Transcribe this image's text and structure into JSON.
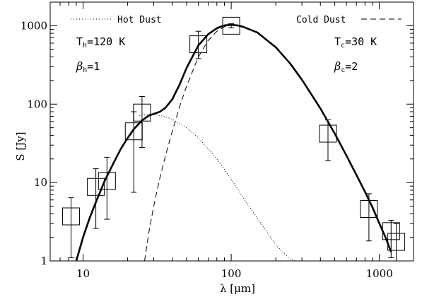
{
  "chart_data": {
    "type": "scatter",
    "title": "",
    "xlabel": "λ [μm]",
    "ylabel": "S [Jy]",
    "xscale": "log",
    "yscale": "log",
    "xlim": [
      6,
      1700
    ],
    "ylim": [
      1,
      2000
    ],
    "x_ticks": [
      {
        "value": 10,
        "label": "10"
      },
      {
        "value": 100,
        "label": "100"
      },
      {
        "value": 1000,
        "label": "1000"
      }
    ],
    "y_ticks": [
      {
        "value": 1,
        "label": "1"
      },
      {
        "value": 10,
        "label": "10"
      },
      {
        "value": 100,
        "label": "100"
      },
      {
        "value": 1000,
        "label": "1000"
      }
    ],
    "legend": {
      "hot": {
        "label": "Hot Dust",
        "style": "dotted",
        "placement": "top-left"
      },
      "cold": {
        "label": "Cold Dust",
        "style": "dashed",
        "placement": "top-right"
      }
    },
    "annotations": {
      "hot": {
        "T_main": "T",
        "T_sub": "h",
        "T_value": "=120 K",
        "beta_main": "β",
        "beta_sub": "h",
        "beta_value": "=1"
      },
      "cold": {
        "T_main": "T",
        "T_sub": "c",
        "T_value": "=30 K",
        "beta_main": "β",
        "beta_sub": "c",
        "beta_value": "=2"
      }
    },
    "observations": [
      {
        "x": 8.3,
        "y": 3.7,
        "y_low": 1.1,
        "y_high": 6.4
      },
      {
        "x": 12.2,
        "y": 8.8,
        "y_low": 2.6,
        "y_high": 15
      },
      {
        "x": 14.5,
        "y": 10.5,
        "y_low": 3.4,
        "y_high": 21
      },
      {
        "x": 22,
        "y": 45,
        "y_low": 7.5,
        "y_high": 80
      },
      {
        "x": 25,
        "y": 78,
        "y_low": 28,
        "y_high": 125
      },
      {
        "x": 60,
        "y": 580,
        "y_low": 380,
        "y_high": 850
      },
      {
        "x": 100,
        "y": 1000,
        "y_low": 940,
        "y_high": 1060
      },
      {
        "x": 450,
        "y": 42,
        "y_low": 19,
        "y_high": 63
      },
      {
        "x": 850,
        "y": 4.6,
        "y_low": 1.8,
        "y_high": 7.2
      },
      {
        "x": 1200,
        "y": 2.4,
        "y_low": 1.1,
        "y_high": 3.3
      },
      {
        "x": 1300,
        "y": 1.75,
        "y_low": 1.0,
        "y_high": 3.0
      }
    ],
    "series": [
      {
        "style": "solid",
        "x": [
          9,
          10,
          11,
          12,
          14,
          16,
          18,
          20,
          22,
          25,
          28,
          30,
          33,
          36,
          40,
          45,
          50,
          60,
          70,
          80,
          90,
          100,
          110,
          120,
          150,
          200,
          250,
          300,
          400,
          500,
          600,
          700,
          800,
          900,
          1000,
          1100,
          1200
        ],
        "y": [
          1,
          2.0,
          3.4,
          5.2,
          10.5,
          17.5,
          27,
          37,
          48,
          62,
          72,
          75,
          80,
          90,
          115,
          180,
          290,
          560,
          780,
          930,
          1010,
          1030,
          1010,
          970,
          820,
          530,
          330,
          205,
          88,
          42,
          22,
          12.5,
          7.6,
          4.8,
          3.0,
          2.0,
          1.3
        ]
      },
      {
        "style": "dotted",
        "x": [
          24,
          26,
          28,
          30,
          35,
          40,
          50,
          60,
          70,
          80,
          100,
          120,
          150,
          200,
          250,
          280
        ],
        "y": [
          71,
          73,
          74,
          74,
          70,
          64,
          50,
          37,
          27,
          20,
          11,
          6.5,
          3.5,
          1.6,
          1.05,
          0.98
        ]
      },
      {
        "style": "dashed",
        "x": [
          26,
          28,
          30,
          33,
          36,
          40,
          45,
          50,
          60,
          70,
          80,
          90,
          100
        ],
        "y": [
          1,
          2.5,
          5.0,
          11.5,
          22,
          45,
          95,
          170,
          400,
          650,
          850,
          970,
          1020
        ]
      }
    ]
  }
}
